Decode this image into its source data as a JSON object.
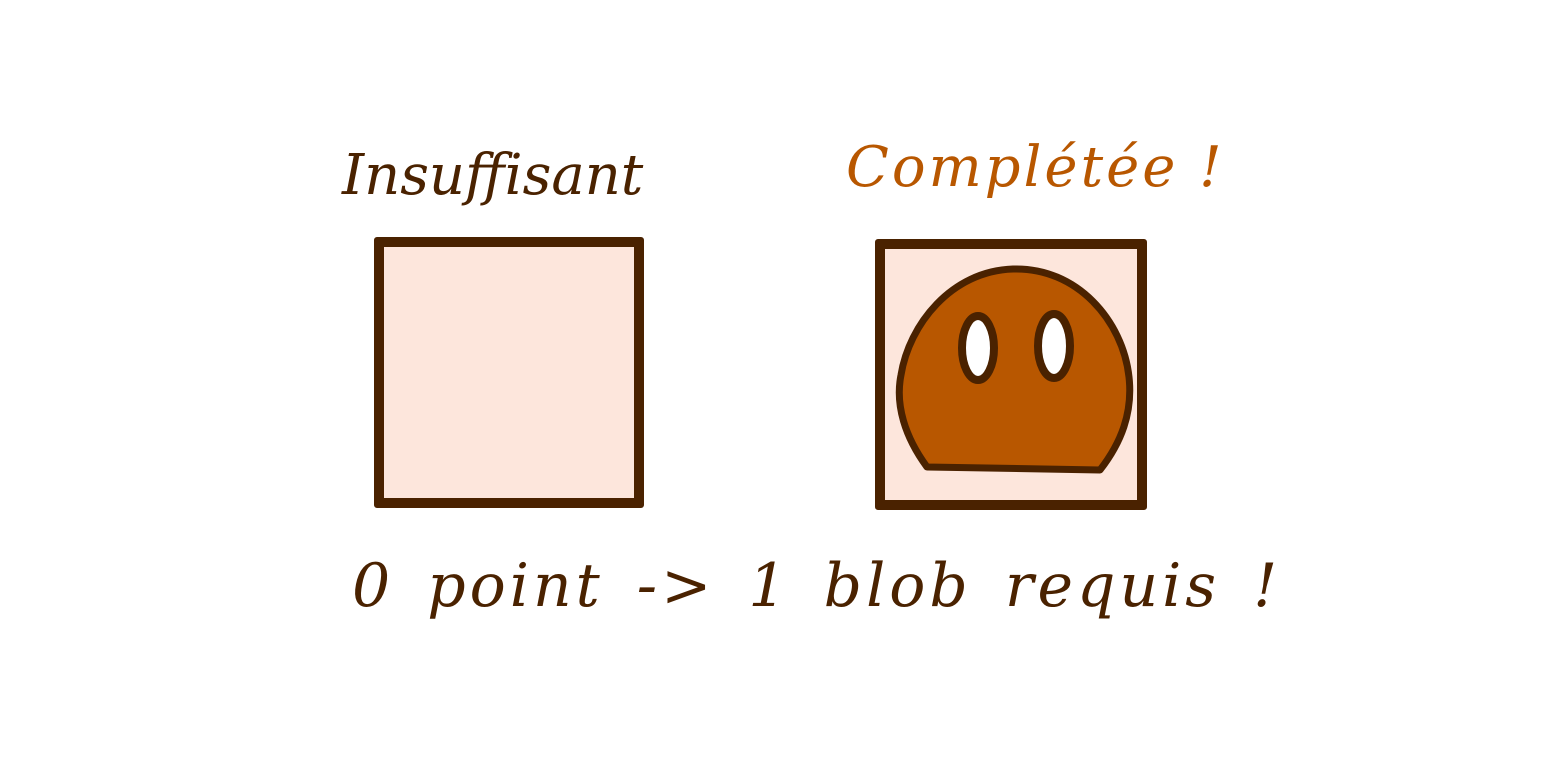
{
  "slots": [
    {
      "label": "Insuffisant",
      "filled": false,
      "label_color": "#4a2200"
    },
    {
      "label": "Complétée !",
      "filled": true,
      "label_color": "#b85700"
    }
  ],
  "footer": {
    "text": "0 point -> 1 blob requis !"
  },
  "colors": {
    "outline": "#4a2200",
    "box_fill": "#fde6dc",
    "blob_body": "#b85700",
    "blob_eye": "#ffffff",
    "background": "#ffffff"
  }
}
